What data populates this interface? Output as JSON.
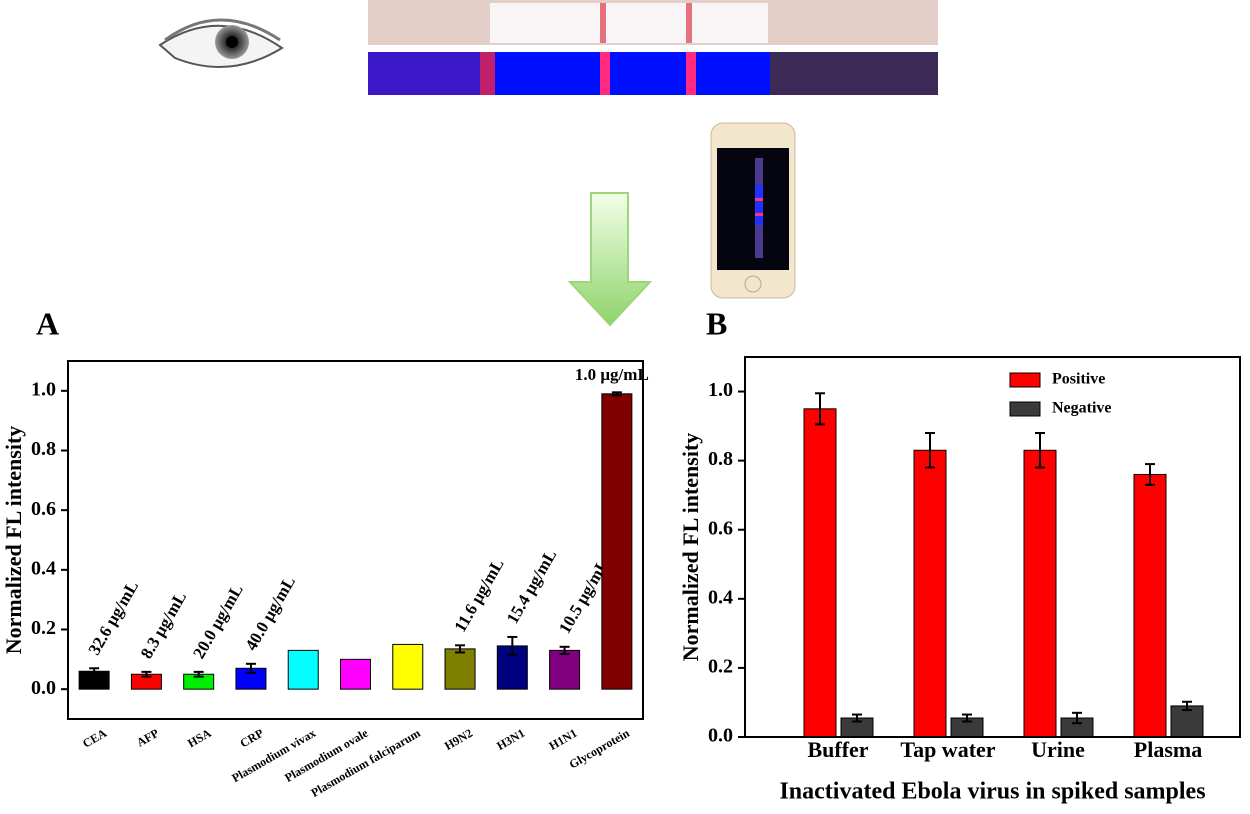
{
  "chart_data": [
    {
      "type": "bar",
      "panel_label": "A",
      "ylabel": "Normalized FL intensity",
      "categories": [
        "CEA",
        "AFP",
        "HSA",
        "CRP",
        "Plasmodium vivax",
        "Plasmodium ovale",
        "Plasmodium falciparum",
        "H9N2",
        "H3N1",
        "H1N1",
        "Glycoprotein"
      ],
      "values": [
        0.06,
        0.05,
        0.05,
        0.07,
        0.13,
        0.1,
        0.15,
        0.135,
        0.145,
        0.13,
        0.99
      ],
      "errors": [
        0.01,
        0.008,
        0.008,
        0.015,
        null,
        null,
        null,
        0.012,
        0.03,
        0.012,
        0.005
      ],
      "colors": [
        "#000000",
        "#ff0000",
        "#00ee00",
        "#0000ff",
        "#00ffff",
        "#ff00ff",
        "#ffff00",
        "#808000",
        "#000080",
        "#800080",
        "#800000"
      ],
      "annotations": [
        "32.6 μg/mL",
        "8.3 μg/mL",
        "20.0 μg/mL",
        "40.0 μg/mL",
        null,
        null,
        null,
        "11.6 μg/mL",
        "15.4 μg/mL",
        "10.5 μg/mL",
        "1.0 μg/mL"
      ],
      "ylim": [
        -0.1,
        1.1
      ],
      "yticks": [
        {
          "value": 0,
          "label": "0.0"
        },
        0.2,
        0.4,
        0.6,
        0.8,
        {
          "value": 1,
          "label": "1.0"
        }
      ]
    },
    {
      "type": "bar",
      "panel_label": "B",
      "ylabel": "Normalized FL intensity",
      "xlabel": "Inactivated Ebola virus in spiked samples",
      "categories": [
        "Buffer",
        "Tap water",
        "Urine",
        "Plasma"
      ],
      "series": [
        {
          "name": "Positive",
          "color": "#ff0000",
          "values": [
            0.95,
            0.83,
            0.83,
            0.76
          ],
          "errors": [
            0.045,
            0.05,
            0.05,
            0.03
          ]
        },
        {
          "name": "Negative",
          "color": "#3a3a3a",
          "values": [
            0.055,
            0.055,
            0.055,
            0.09
          ],
          "errors": [
            0.01,
            0.01,
            0.015,
            0.012
          ]
        }
      ],
      "legend": "upper right",
      "ylim": [
        0,
        1.1
      ],
      "yticks": [
        {
          "value": 0,
          "label": "0.0"
        },
        0.2,
        0.4,
        0.6,
        0.8,
        {
          "value": 1,
          "label": "1.0"
        }
      ]
    }
  ]
}
